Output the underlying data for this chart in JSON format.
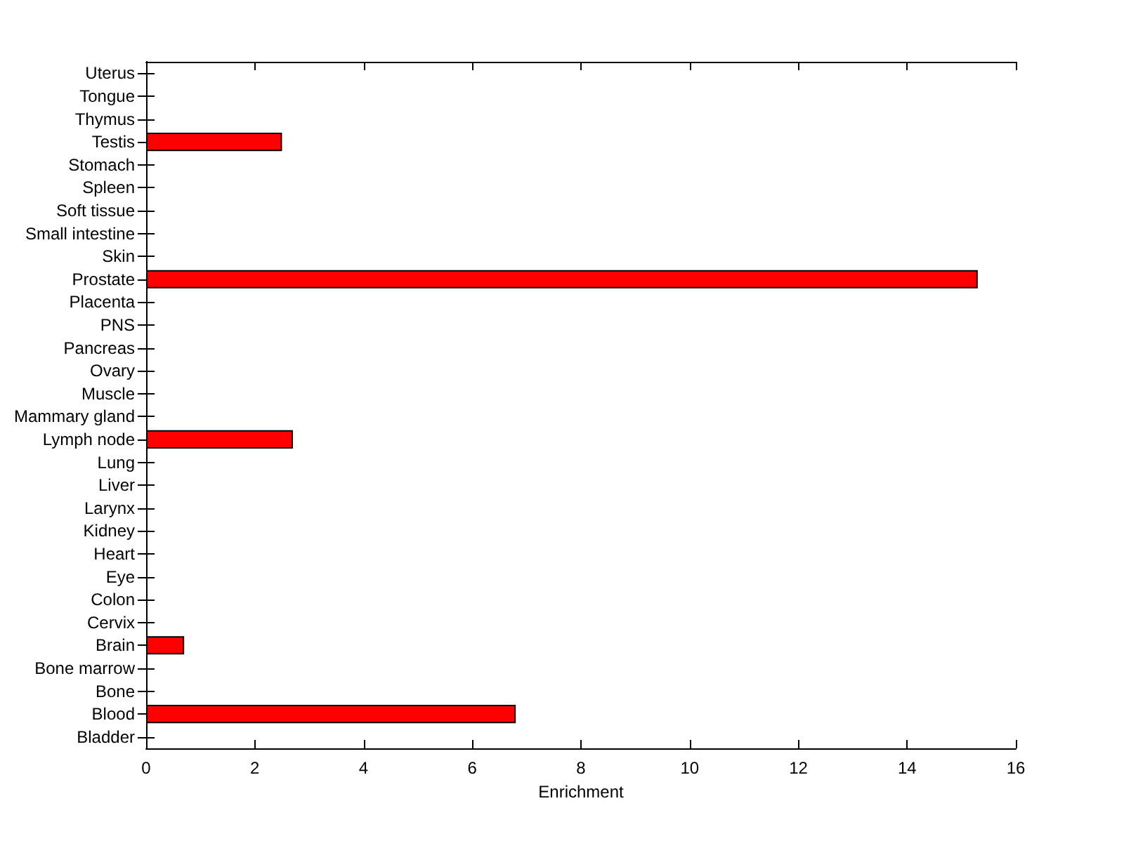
{
  "chart_data": {
    "type": "bar",
    "orientation": "horizontal",
    "xlabel": "Enrichment",
    "categories": [
      "Uterus",
      "Tongue",
      "Thymus",
      "Testis",
      "Stomach",
      "Spleen",
      "Soft tissue",
      "Small intestine",
      "Skin",
      "Prostate",
      "Placenta",
      "PNS",
      "Pancreas",
      "Ovary",
      "Muscle",
      "Mammary gland",
      "Lymph node",
      "Lung",
      "Liver",
      "Larynx",
      "Kidney",
      "Heart",
      "Eye",
      "Colon",
      "Cervix",
      "Brain",
      "Bone marrow",
      "Bone",
      "Blood",
      "Bladder"
    ],
    "values": [
      0,
      0,
      0,
      2.5,
      0,
      0,
      0,
      0,
      0,
      15.3,
      0,
      0,
      0,
      0,
      0,
      0,
      2.7,
      0,
      0,
      0,
      0,
      0,
      0,
      0,
      0,
      0.7,
      0,
      0,
      6.8,
      0
    ],
    "color": "#ff0000",
    "xlim": [
      0,
      16
    ],
    "xticks": [
      0,
      2,
      4,
      6,
      8,
      10,
      12,
      14,
      16
    ],
    "grid": false
  }
}
